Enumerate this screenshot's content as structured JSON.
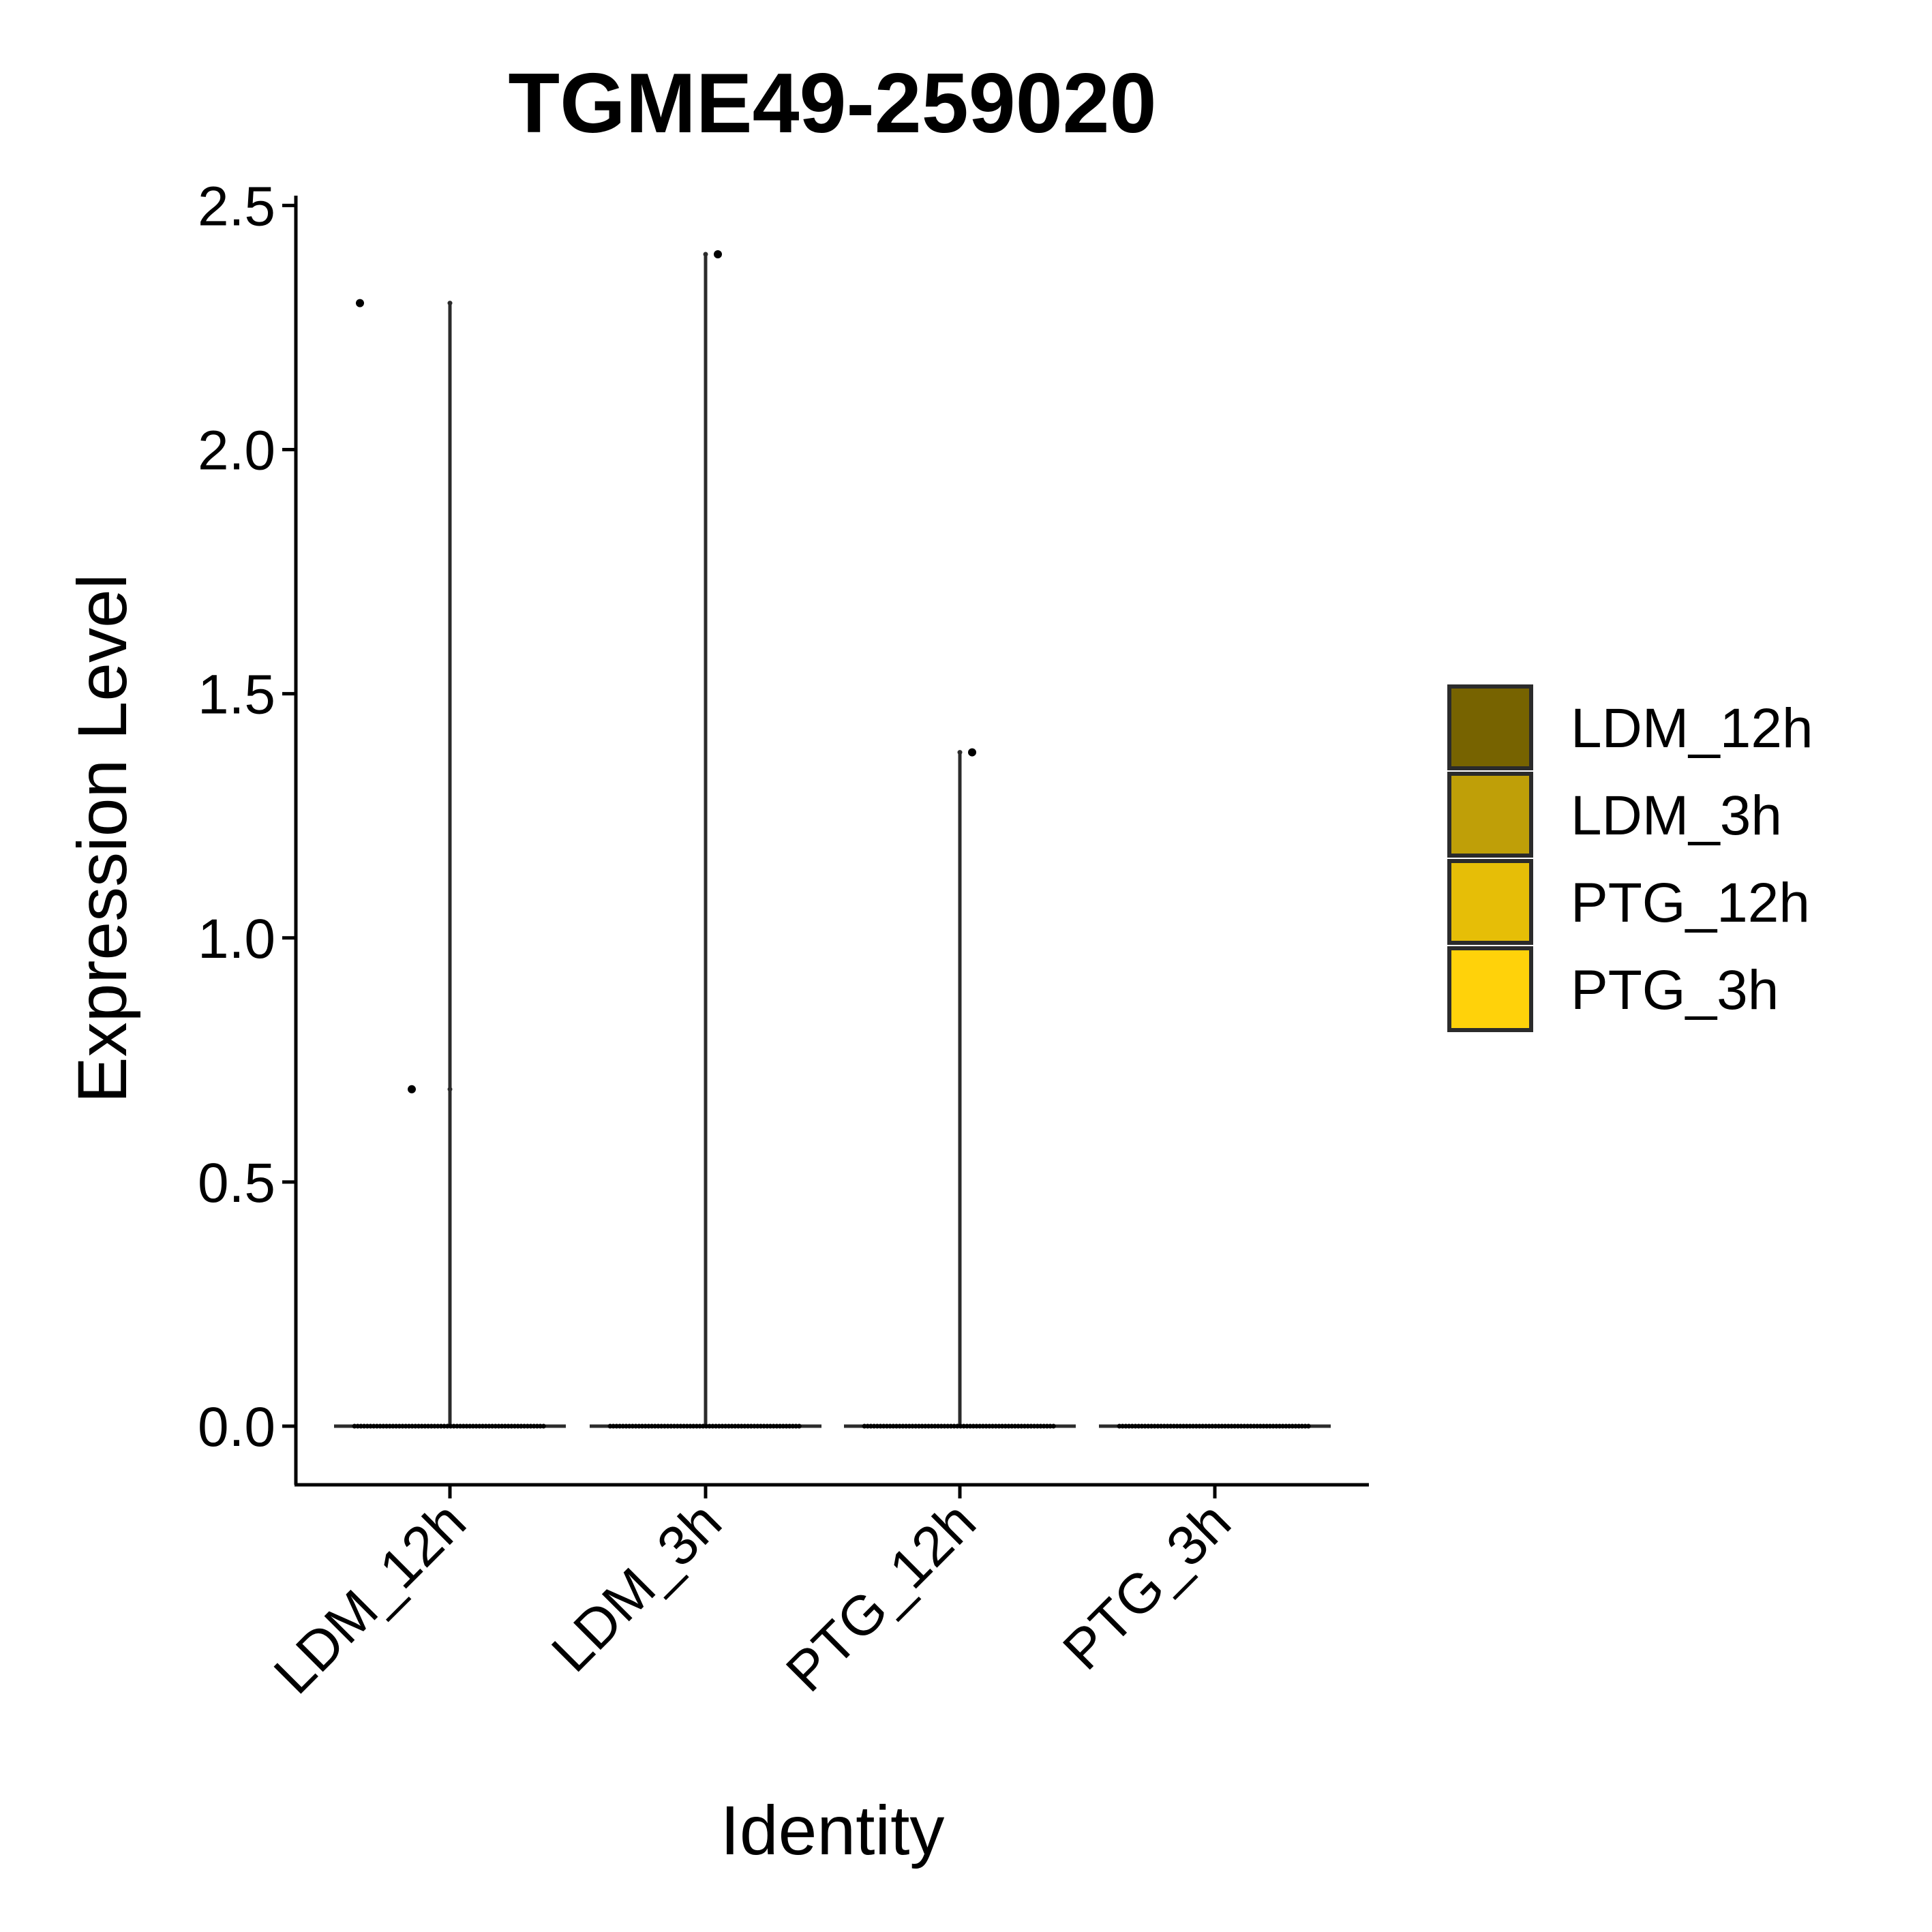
{
  "chart_data": {
    "type": "violin",
    "title": "TGME49-259020",
    "xlabel": "Identity",
    "ylabel": "Expression Level",
    "ylim": [
      -0.12,
      2.52
    ],
    "yticks": [
      "0.0",
      "0.5",
      "1.0",
      "1.5",
      "2.0",
      "2.5"
    ],
    "ytick_values": [
      0.0,
      0.5,
      1.0,
      1.5,
      2.0,
      2.5
    ],
    "categories": [
      "LDM_12h",
      "LDM_3h",
      "PTG_12h",
      "PTG_3h"
    ],
    "grid": false,
    "legend_position": "right",
    "groups": [
      {
        "name": "LDM_12h",
        "color": "#776300",
        "violin_max": 2.3,
        "nonzero_points": [
          2.3,
          0.69
        ],
        "zero_points": true
      },
      {
        "name": "LDM_3h",
        "color": "#BF9F08",
        "violin_max": 2.4,
        "nonzero_points": [
          2.4
        ],
        "zero_points": true
      },
      {
        "name": "PTG_12h",
        "color": "#E6BE07",
        "violin_max": 1.38,
        "nonzero_points": [
          1.38
        ],
        "zero_points": true
      },
      {
        "name": "PTG_3h",
        "color": "#FFD20A",
        "violin_max": 0.0,
        "nonzero_points": [],
        "zero_points": true
      }
    ],
    "legend": {
      "entries": [
        "LDM_12h",
        "LDM_3h",
        "PTG_12h",
        "PTG_3h"
      ]
    }
  }
}
